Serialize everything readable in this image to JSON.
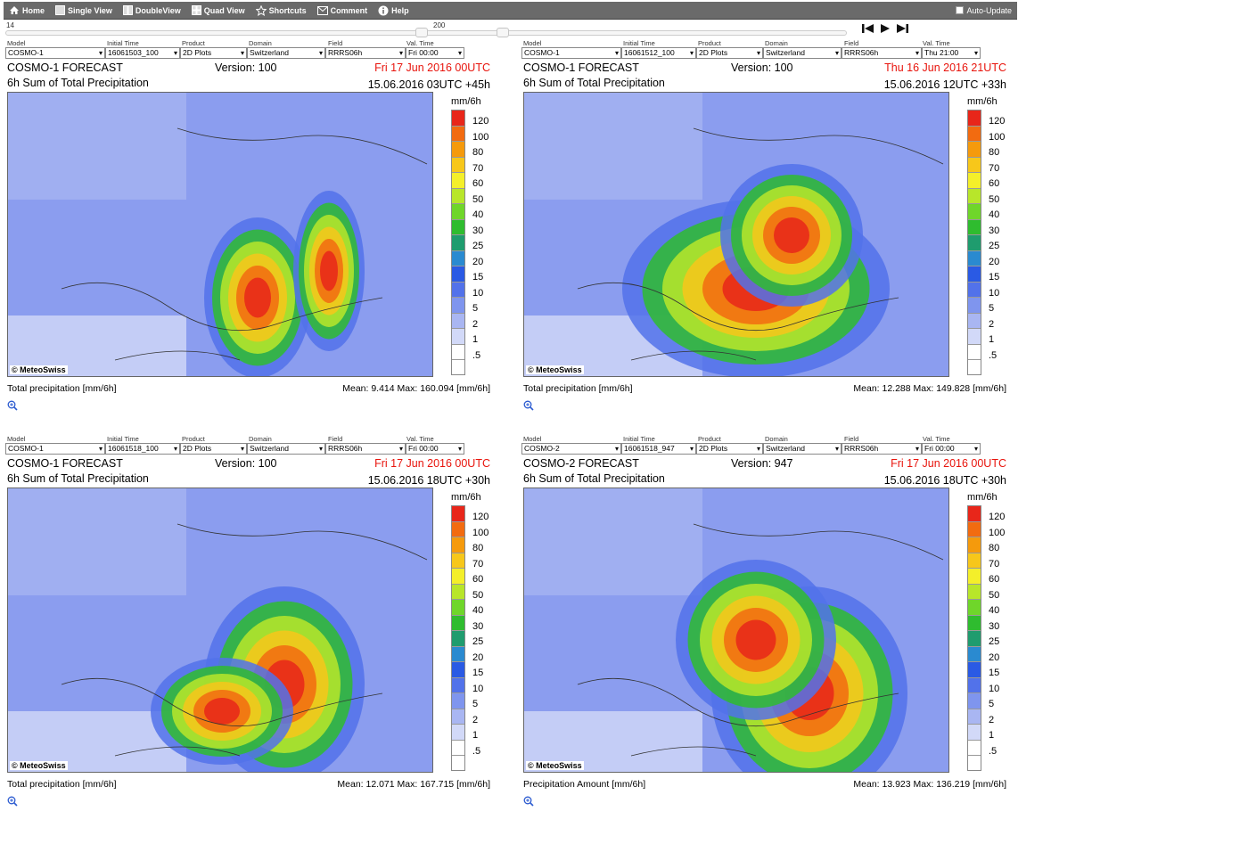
{
  "toolbar": {
    "home": "Home",
    "single_view": "Single View",
    "double_view": "DoubleView",
    "quad_view": "Quad View",
    "shortcuts": "Shortcuts",
    "comment": "Comment",
    "help": "Help",
    "auto_update": "Auto-Update"
  },
  "slider": {
    "min": "14",
    "max": "200"
  },
  "labels": {
    "model": "Model",
    "initial_time": "Initial Time",
    "product": "Product",
    "domain": "Domain",
    "field": "Field",
    "val_time": "Val. Time"
  },
  "colorbar": {
    "unit": "mm/6h",
    "ticks": [
      "120",
      "100",
      "80",
      "70",
      "60",
      "50",
      "40",
      "30",
      "25",
      "20",
      "15",
      "10",
      "5",
      "2",
      "1",
      ".5"
    ],
    "colors": [
      "#e8261a",
      "#f26b10",
      "#f59a0c",
      "#f7c71a",
      "#f4ef2a",
      "#b8e62a",
      "#6fd62a",
      "#2fbc2f",
      "#1f9c6e",
      "#2a8ad0",
      "#2a5ae4",
      "#5272ea",
      "#7f95ee",
      "#a9b6f2",
      "#d2d9f8",
      "#ffffff"
    ]
  },
  "panels": [
    {
      "model": "COSMO-1",
      "initial_time": "16061503_100",
      "product": "2D Plots",
      "domain": "Switzerland",
      "field": "RRRS06h",
      "val_time": "Fri 00:00",
      "forecast": "COSMO-1 FORECAST",
      "version": "Version: 100",
      "valid": "Fri 17 Jun 2016 00UTC",
      "subtitle": "6h Sum of Total Precipitation",
      "run": "15.06.2016 03UTC +45h",
      "credit": "© MeteoSwiss",
      "footer_left": "Total precipitation [mm/6h]",
      "footer_right": "Mean:   9.414 Max: 160.094 [mm/6h]"
    },
    {
      "model": "COSMO-1",
      "initial_time": "16061512_100",
      "product": "2D Plots",
      "domain": "Switzerland",
      "field": "RRRS06h",
      "val_time": "Thu 21:00",
      "forecast": "COSMO-1 FORECAST",
      "version": "Version: 100",
      "valid": "Thu 16 Jun 2016 21UTC",
      "subtitle": "6h Sum of Total Precipitation",
      "run": "15.06.2016 12UTC +33h",
      "credit": "© MeteoSwiss",
      "footer_left": "Total precipitation [mm/6h]",
      "footer_right": "Mean:   12.288 Max: 149.828 [mm/6h]"
    },
    {
      "model": "COSMO-1",
      "initial_time": "16061518_100",
      "product": "2D Plots",
      "domain": "Switzerland",
      "field": "RRRS06h",
      "val_time": "Fri 00:00",
      "forecast": "COSMO-1 FORECAST",
      "version": "Version: 100",
      "valid": "Fri 17 Jun 2016 00UTC",
      "subtitle": "6h Sum of Total Precipitation",
      "run": "15.06.2016 18UTC +30h",
      "credit": "© MeteoSwiss",
      "footer_left": "Total precipitation [mm/6h]",
      "footer_right": "Mean:  12.071 Max: 167.715 [mm/6h]"
    },
    {
      "model": "COSMO-2",
      "initial_time": "16061518_947",
      "product": "2D Plots",
      "domain": "Switzerland",
      "field": "RRRS06h",
      "val_time": "Fri 00:00",
      "forecast": "COSMO-2 FORECAST",
      "version": "Version: 947",
      "valid": "Fri 17 Jun 2016 00UTC",
      "subtitle": "6h Sum of Total Precipitation",
      "run": "15.06.2016 18UTC +30h",
      "credit": "© MeteoSwiss",
      "footer_left": "Precipitation Amount [mm/6h]",
      "footer_right": "Mean:  13.923 Max: 136.219 [mm/6h]"
    }
  ]
}
